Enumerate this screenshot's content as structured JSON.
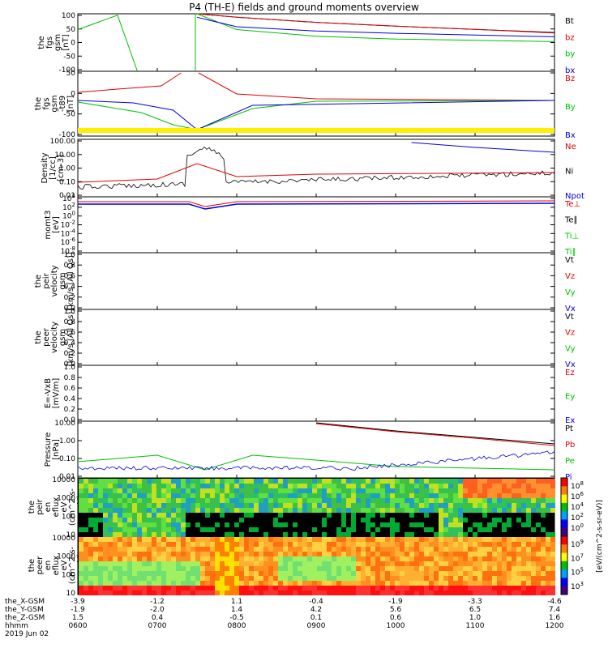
{
  "title": "P4 (TH-E) fields and ground moments overview",
  "colors": {
    "black": "#000000",
    "red": "#e00000",
    "green": "#00c000",
    "blue": "#0000e0",
    "yellow": "#ffee00"
  },
  "chart_data": [
    {
      "type": "line",
      "panel": "fgs_gsm",
      "ylabel": [
        "the",
        "fgs",
        "gsm",
        "[nT]"
      ],
      "ylim": [
        -100,
        100
      ],
      "yticks": [
        "100",
        "50",
        "0",
        "-50",
        "-100"
      ],
      "series": [
        {
          "name": "Bt",
          "color": "black"
        },
        {
          "name": "bz",
          "color": "red"
        },
        {
          "name": "by",
          "color": "green"
        },
        {
          "name": "bx",
          "color": "blue"
        }
      ],
      "x": [
        0,
        0.25,
        0.5,
        0.75,
        1.0,
        1.5,
        2.0,
        3.0,
        4.0,
        5.0,
        6.0
      ],
      "values": {
        "Bt": [
          null,
          null,
          null,
          null,
          null,
          100,
          88,
          70,
          57,
          46,
          35
        ],
        "bz": [
          null,
          null,
          null,
          null,
          null,
          100,
          88,
          70,
          57,
          46,
          33
        ],
        "by": [
          45,
          70,
          95,
          -100,
          null,
          100,
          45,
          22,
          12,
          8,
          3
        ],
        "bx": [
          null,
          null,
          null,
          null,
          null,
          88,
          55,
          40,
          32,
          26,
          20
        ]
      }
    },
    {
      "type": "line",
      "panel": "fgs_gse_ts89",
      "ylabel": [
        "the",
        "fgs",
        "gsm",
        "-t89",
        "[nT]"
      ],
      "ylim": [
        -120,
        100
      ],
      "yticks": [
        "50",
        "0",
        "-50",
        "-100"
      ],
      "series": [
        {
          "name": "Bz",
          "color": "red"
        },
        {
          "name": "By",
          "color": "green"
        },
        {
          "name": "Bx",
          "color": "blue"
        }
      ]
    },
    {
      "type": "line",
      "panel": "density",
      "ylabel": [
        "Density",
        "[1/cc]",
        "[cm-3]"
      ],
      "yticks": [
        "100.00",
        "10.00",
        "1.00",
        "0.10",
        "0.01"
      ],
      "ylog": true,
      "series": [
        {
          "name": "Ne",
          "color": "red"
        },
        {
          "name": "Ni",
          "color": "black"
        },
        {
          "name": "Npot",
          "color": "blue"
        }
      ]
    },
    {
      "type": "line",
      "panel": "moms_temp",
      "ylabel": [
        "momt3",
        "[eV]"
      ],
      "yticks": [
        "10^4",
        "10^2",
        "10^0",
        "10^-2",
        "10^-4",
        "10^-6",
        "10^-8"
      ],
      "ylog": true,
      "series": [
        {
          "name": "Te⊥",
          "color": "red"
        },
        {
          "name": "Te∥",
          "color": "black"
        },
        {
          "name": "Ti⊥",
          "color": "green"
        },
        {
          "name": "Ti∥",
          "color": "green"
        }
      ]
    },
    {
      "type": "line",
      "panel": "peir_velocity",
      "ylabel": [
        "the",
        "peir",
        "velocity",
        "gsm",
        "[km/s (All Qs)]"
      ],
      "ylim": [
        0,
        1
      ],
      "yticks": [
        "1.0",
        "0.8",
        "0.6",
        "0.4",
        "0.2",
        "0.0"
      ],
      "series": [
        {
          "name": "Vt",
          "color": "black"
        },
        {
          "name": "Vz",
          "color": "red"
        },
        {
          "name": "Vy",
          "color": "green"
        },
        {
          "name": "Vx",
          "color": "blue"
        }
      ]
    },
    {
      "type": "line",
      "panel": "peer_velocity",
      "ylabel": [
        "the",
        "peer",
        "velocity",
        "gsm",
        "[km/s (All Qs)]"
      ],
      "ylim": [
        0,
        1
      ],
      "yticks": [
        "1.0",
        "0.8",
        "0.6",
        "0.4",
        "0.2",
        "0.0"
      ],
      "series": [
        {
          "name": "Vt",
          "color": "black"
        },
        {
          "name": "Vz",
          "color": "red"
        },
        {
          "name": "Vy",
          "color": "green"
        },
        {
          "name": "Vx",
          "color": "blue"
        }
      ]
    },
    {
      "type": "line",
      "panel": "efield",
      "ylabel": [
        "E=-VxB",
        "[mV/m]"
      ],
      "ylim": [
        0,
        1
      ],
      "yticks": [
        "1.0",
        "0.8",
        "0.6",
        "0.4",
        "0.2",
        "0.0"
      ],
      "series": [
        {
          "name": "Ez",
          "color": "red"
        },
        {
          "name": "Ey",
          "color": "green"
        },
        {
          "name": "Ex",
          "color": "blue"
        }
      ]
    },
    {
      "type": "line",
      "panel": "pressure",
      "ylabel": [
        "Pressure",
        "[nPa]"
      ],
      "ylog": true,
      "yticks": [
        "10.00",
        "1.00",
        "0.10",
        "0.01"
      ],
      "series": [
        {
          "name": "Pt",
          "color": "black"
        },
        {
          "name": "Pb",
          "color": "red"
        },
        {
          "name": "Pe",
          "color": "green"
        },
        {
          "name": "Pi",
          "color": "blue"
        }
      ]
    },
    {
      "type": "heatmap",
      "panel": "peir_en_eflux",
      "ylabel": [
        "the",
        "peir",
        "en",
        "eflux",
        "eV",
        "(cm^2-s-",
        "sr-eV)"
      ],
      "yticks": [
        "10000",
        "1000",
        "100",
        "10"
      ],
      "colorbar_ticks": [
        "10^8",
        "10^6",
        "10^4",
        "10^2",
        "10^0"
      ],
      "colorbar_label": "[eV/(cm^2-s-sr-eV)]"
    },
    {
      "type": "heatmap",
      "panel": "peer_en_eflux",
      "ylabel": [
        "the",
        "peer",
        "en",
        "eflux",
        "eV",
        "(cm^2-s-",
        "sr-eV)"
      ],
      "yticks": [
        "10000",
        "1000",
        "100",
        "10"
      ],
      "colorbar_ticks": [
        "10^9",
        "10^7",
        "10^5",
        "10^3"
      ],
      "colorbar_label": "[eV/(cm^2-s-sr-eV)]"
    }
  ],
  "xaxis": {
    "row_labels": [
      "the_X-GSM",
      "the_Y-GSM",
      "the_Z-GSM",
      "hhmm",
      "2019 Jun 02"
    ],
    "columns": [
      [
        "-3.9",
        "-1.9",
        "1.5",
        "0600"
      ],
      [
        "-1.2",
        "-2.0",
        "0.4",
        "0700"
      ],
      [
        "1.1",
        "1.4",
        "-0.5",
        "0800"
      ],
      [
        "-0.4",
        "4.2",
        "0.1",
        "0900"
      ],
      [
        "-1.9",
        "5.6",
        "0.6",
        "1000"
      ],
      [
        "-3.3",
        "6.5",
        "1.0",
        "1100"
      ],
      [
        "-4.6",
        "7.4",
        "1.6",
        "1200"
      ]
    ]
  }
}
